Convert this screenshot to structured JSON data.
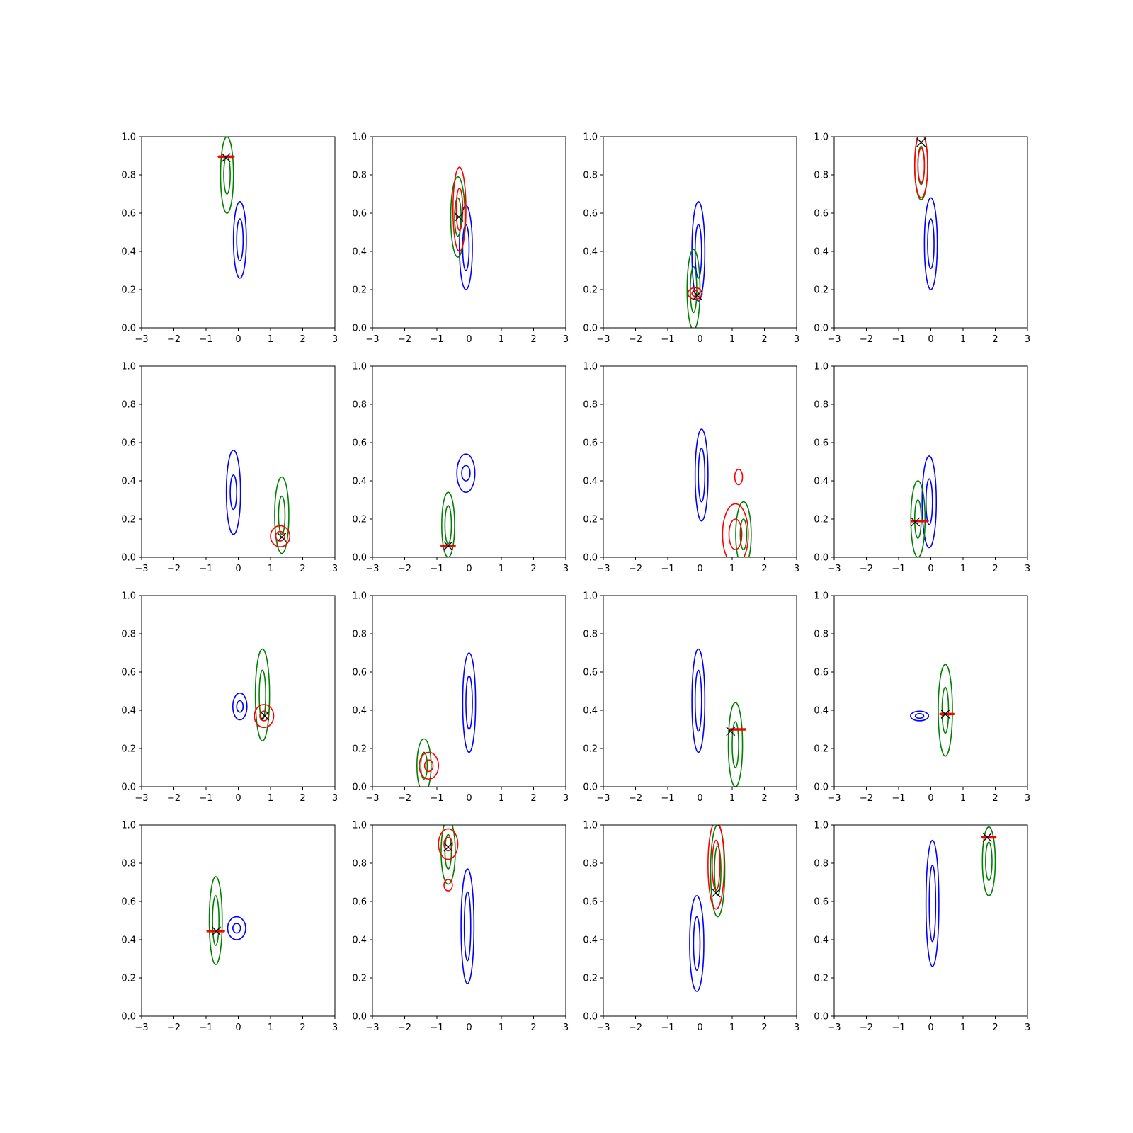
{
  "chart_data": {
    "type": "contour",
    "grid": {
      "rows": 4,
      "cols": 4
    },
    "xlim": [
      -3,
      3
    ],
    "ylim": [
      0,
      1
    ],
    "xticks": [
      "−3",
      "−2",
      "−1",
      "0",
      "1",
      "2",
      "3"
    ],
    "yticks": [
      "0.0",
      "0.2",
      "0.4",
      "0.6",
      "0.8",
      "1.0"
    ],
    "colors": {
      "blue": "#0000ff",
      "green": "#008000",
      "red": "#ff0000",
      "marker": "#000000"
    },
    "panels": [
      {
        "contours": [
          {
            "color": "blue",
            "cx": 0.05,
            "cy": 0.46,
            "levels": [
              [
                0.2,
                0.2
              ],
              [
                0.1,
                0.11
              ]
            ]
          },
          {
            "color": "green",
            "cx": -0.35,
            "cy": 0.8,
            "levels": [
              [
                0.2,
                0.2
              ],
              [
                0.1,
                0.1
              ]
            ]
          }
        ],
        "bar": {
          "x0": -0.6,
          "x1": -0.15,
          "y": 0.895
        },
        "marker": {
          "x": -0.38,
          "y": 0.89
        }
      },
      {
        "contours": [
          {
            "color": "blue",
            "cx": -0.1,
            "cy": 0.42,
            "levels": [
              [
                0.2,
                0.22
              ],
              [
                0.1,
                0.12
              ]
            ]
          },
          {
            "color": "green",
            "cx": -0.35,
            "cy": 0.58,
            "levels": [
              [
                0.22,
                0.21
              ],
              [
                0.1,
                0.1
              ]
            ]
          },
          {
            "color": "red",
            "cx": -0.3,
            "cy": 0.62,
            "levels": [
              [
                0.2,
                0.22
              ],
              [
                0.1,
                0.11
              ]
            ]
          }
        ],
        "marker": {
          "x": -0.32,
          "y": 0.58
        }
      },
      {
        "contours": [
          {
            "color": "blue",
            "cx": -0.05,
            "cy": 0.4,
            "levels": [
              [
                0.2,
                0.26
              ],
              [
                0.1,
                0.14
              ]
            ]
          },
          {
            "color": "green",
            "cx": -0.2,
            "cy": 0.2,
            "levels": [
              [
                0.2,
                0.21
              ],
              [
                0.1,
                0.12
              ]
            ]
          },
          {
            "color": "red",
            "cx": -0.15,
            "cy": 0.18,
            "levels": [
              [
                0.22,
                0.03
              ],
              [
                0.1,
                0.015
              ]
            ]
          }
        ],
        "marker": {
          "x": -0.08,
          "y": 0.17
        }
      },
      {
        "contours": [
          {
            "color": "blue",
            "cx": 0.0,
            "cy": 0.44,
            "levels": [
              [
                0.2,
                0.24
              ],
              [
                0.1,
                0.13
              ]
            ]
          },
          {
            "color": "green",
            "cx": -0.3,
            "cy": 0.85,
            "levels": [
              [
                0.2,
                0.18
              ],
              [
                0.1,
                0.1
              ]
            ]
          },
          {
            "color": "red",
            "cx": -0.3,
            "cy": 0.85,
            "levels": [
              [
                0.2,
                0.17
              ],
              [
                0.1,
                0.09
              ]
            ]
          }
        ],
        "marker": {
          "x": -0.3,
          "y": 0.97
        }
      },
      {
        "contours": [
          {
            "color": "blue",
            "cx": -0.15,
            "cy": 0.34,
            "levels": [
              [
                0.22,
                0.22
              ],
              [
                0.1,
                0.09
              ]
            ]
          },
          {
            "color": "green",
            "cx": 1.35,
            "cy": 0.22,
            "levels": [
              [
                0.22,
                0.2
              ],
              [
                0.1,
                0.1
              ]
            ]
          },
          {
            "color": "red",
            "cx": 1.3,
            "cy": 0.11,
            "levels": [
              [
                0.3,
                0.055
              ],
              [
                0.14,
                0.025
              ]
            ]
          }
        ],
        "marker": {
          "x": 1.35,
          "y": 0.105
        }
      },
      {
        "contours": [
          {
            "color": "blue",
            "cx": -0.1,
            "cy": 0.44,
            "levels": [
              [
                0.28,
                0.1
              ],
              [
                0.13,
                0.04
              ]
            ]
          },
          {
            "color": "green",
            "cx": -0.65,
            "cy": 0.17,
            "levels": [
              [
                0.2,
                0.17
              ],
              [
                0.1,
                0.1
              ]
            ]
          }
        ],
        "bar": {
          "x0": -0.85,
          "x1": -0.45,
          "y": 0.06
        },
        "marker": {
          "x": -0.65,
          "y": 0.06
        }
      },
      {
        "contours": [
          {
            "color": "blue",
            "cx": 0.05,
            "cy": 0.43,
            "levels": [
              [
                0.2,
                0.24
              ],
              [
                0.1,
                0.14
              ]
            ]
          },
          {
            "color": "green",
            "cx": 1.35,
            "cy": 0.12,
            "levels": [
              [
                0.24,
                0.17
              ],
              [
                0.1,
                0.08
              ]
            ]
          },
          {
            "color": "red",
            "cx": 1.1,
            "cy": 0.12,
            "levels": [
              [
                0.4,
                0.16
              ],
              [
                0.2,
                0.08
              ]
            ]
          },
          {
            "color": "red",
            "cx": 1.2,
            "cy": 0.42,
            "levels": [
              [
                0.12,
                0.04
              ]
            ]
          }
        ]
      },
      {
        "contours": [
          {
            "color": "blue",
            "cx": -0.05,
            "cy": 0.29,
            "levels": [
              [
                0.22,
                0.24
              ],
              [
                0.1,
                0.12
              ]
            ]
          },
          {
            "color": "green",
            "cx": -0.4,
            "cy": 0.2,
            "levels": [
              [
                0.22,
                0.2
              ],
              [
                0.1,
                0.1
              ]
            ]
          }
        ],
        "bar": {
          "x0": -0.6,
          "x1": -0.1,
          "y": 0.19
        },
        "marker": {
          "x": -0.48,
          "y": 0.185
        }
      },
      {
        "contours": [
          {
            "color": "blue",
            "cx": 0.05,
            "cy": 0.42,
            "levels": [
              [
                0.22,
                0.07
              ],
              [
                0.1,
                0.03
              ]
            ]
          },
          {
            "color": "green",
            "cx": 0.75,
            "cy": 0.48,
            "levels": [
              [
                0.22,
                0.24
              ],
              [
                0.1,
                0.13
              ]
            ]
          },
          {
            "color": "red",
            "cx": 0.8,
            "cy": 0.37,
            "levels": [
              [
                0.3,
                0.06
              ],
              [
                0.13,
                0.025
              ]
            ]
          }
        ],
        "marker": {
          "x": 0.82,
          "y": 0.37
        }
      },
      {
        "contours": [
          {
            "color": "blue",
            "cx": 0.0,
            "cy": 0.44,
            "levels": [
              [
                0.2,
                0.26
              ],
              [
                0.1,
                0.14
              ]
            ]
          },
          {
            "color": "green",
            "cx": -1.4,
            "cy": 0.11,
            "levels": [
              [
                0.22,
                0.14
              ],
              [
                0.1,
                0.07
              ]
            ]
          },
          {
            "color": "red",
            "cx": -1.25,
            "cy": 0.11,
            "levels": [
              [
                0.3,
                0.07
              ],
              [
                0.13,
                0.03
              ]
            ]
          }
        ]
      },
      {
        "contours": [
          {
            "color": "blue",
            "cx": -0.05,
            "cy": 0.45,
            "levels": [
              [
                0.2,
                0.27
              ],
              [
                0.1,
                0.16
              ]
            ]
          },
          {
            "color": "green",
            "cx": 1.1,
            "cy": 0.22,
            "levels": [
              [
                0.22,
                0.22
              ],
              [
                0.1,
                0.12
              ]
            ]
          }
        ],
        "bar": {
          "x0": 0.95,
          "x1": 1.4,
          "y": 0.3
        },
        "marker": {
          "x": 0.95,
          "y": 0.29
        }
      },
      {
        "contours": [
          {
            "color": "blue",
            "cx": -0.35,
            "cy": 0.37,
            "levels": [
              [
                0.28,
                0.025
              ],
              [
                0.13,
                0.012
              ]
            ]
          },
          {
            "color": "green",
            "cx": 0.45,
            "cy": 0.4,
            "levels": [
              [
                0.22,
                0.24
              ],
              [
                0.1,
                0.12
              ]
            ]
          }
        ],
        "bar": {
          "x0": 0.3,
          "x1": 0.7,
          "y": 0.38
        },
        "marker": {
          "x": 0.45,
          "y": 0.38
        }
      },
      {
        "contours": [
          {
            "color": "blue",
            "cx": -0.05,
            "cy": 0.46,
            "levels": [
              [
                0.28,
                0.06
              ],
              [
                0.12,
                0.025
              ]
            ]
          },
          {
            "color": "green",
            "cx": -0.7,
            "cy": 0.5,
            "levels": [
              [
                0.2,
                0.23
              ],
              [
                0.1,
                0.13
              ]
            ]
          }
        ],
        "bar": {
          "x0": -0.95,
          "x1": -0.45,
          "y": 0.445
        },
        "marker": {
          "x": -0.68,
          "y": 0.445
        }
      },
      {
        "contours": [
          {
            "color": "blue",
            "cx": -0.05,
            "cy": 0.47,
            "levels": [
              [
                0.2,
                0.3
              ],
              [
                0.1,
                0.18
              ]
            ]
          },
          {
            "color": "green",
            "cx": -0.65,
            "cy": 0.86,
            "levels": [
              [
                0.22,
                0.17
              ],
              [
                0.1,
                0.09
              ]
            ]
          },
          {
            "color": "red",
            "cx": -0.65,
            "cy": 0.9,
            "levels": [
              [
                0.3,
                0.08
              ],
              [
                0.13,
                0.035
              ]
            ]
          },
          {
            "color": "red",
            "cx": -0.65,
            "cy": 0.685,
            "levels": [
              [
                0.13,
                0.03
              ]
            ]
          }
        ],
        "marker": {
          "x": -0.65,
          "y": 0.885
        }
      },
      {
        "contours": [
          {
            "color": "blue",
            "cx": -0.1,
            "cy": 0.38,
            "levels": [
              [
                0.22,
                0.25
              ],
              [
                0.1,
                0.14
              ]
            ]
          },
          {
            "color": "green",
            "cx": 0.55,
            "cy": 0.76,
            "levels": [
              [
                0.22,
                0.24
              ],
              [
                0.1,
                0.13
              ]
            ]
          },
          {
            "color": "red",
            "cx": 0.5,
            "cy": 0.79,
            "levels": [
              [
                0.25,
                0.23
              ],
              [
                0.12,
                0.13
              ]
            ]
          }
        ],
        "marker": {
          "x": 0.5,
          "y": 0.645
        }
      },
      {
        "contours": [
          {
            "color": "blue",
            "cx": 0.05,
            "cy": 0.59,
            "levels": [
              [
                0.2,
                0.33
              ],
              [
                0.1,
                0.2
              ]
            ]
          },
          {
            "color": "green",
            "cx": 1.8,
            "cy": 0.81,
            "levels": [
              [
                0.2,
                0.18
              ],
              [
                0.1,
                0.1
              ]
            ]
          }
        ],
        "bar": {
          "x0": 1.6,
          "x1": 2.0,
          "y": 0.935
        },
        "marker": {
          "x": 1.75,
          "y": 0.935
        }
      }
    ]
  }
}
